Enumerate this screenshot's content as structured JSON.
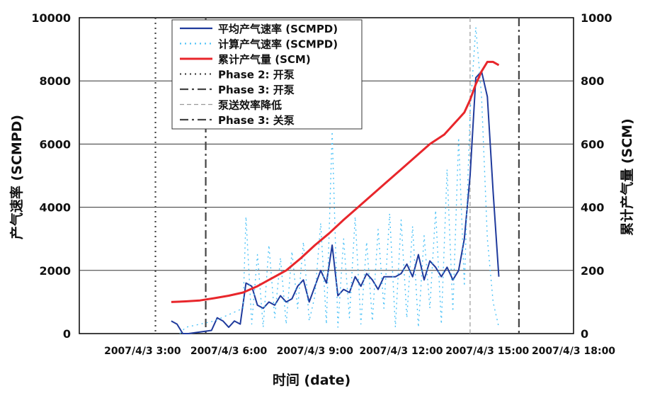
{
  "chart_data": {
    "type": "line",
    "title": "",
    "xlabel": "时间 (date)",
    "ylabel_left": "产气速率 (SCMPD)",
    "ylabel_right": "累计产气量 (SCM)",
    "x_ticks": [
      "2007/4/3 3:00",
      "2007/4/3 6:00",
      "2007/4/3 9:00",
      "2007/4/3 12:00",
      "2007/4/3 15:00",
      "2007/4/3 18:00"
    ],
    "x_tick_hours": [
      3,
      6,
      9,
      12,
      15,
      18
    ],
    "xlim_hours": [
      0.8,
      18.0
    ],
    "ylim_left": [
      0,
      10000
    ],
    "ylim_right": [
      0,
      1000
    ],
    "y_ticks_left": [
      "0",
      "2000",
      "4000",
      "6000",
      "8000",
      "10000"
    ],
    "y_ticks_right": [
      "0",
      "200",
      "400",
      "600",
      "800",
      "1000"
    ],
    "grid": "horizontal",
    "legend_position": "top-center",
    "series": [
      {
        "name": "平均产气速率 (SCMPD)",
        "axis": "left",
        "color": "#1f3a9c",
        "style": "solid",
        "x_hours": [
          4.0,
          4.2,
          4.4,
          4.6,
          5.4,
          5.6,
          5.8,
          6.0,
          6.2,
          6.4,
          6.6,
          6.8,
          7.0,
          7.2,
          7.4,
          7.6,
          7.8,
          8.0,
          8.2,
          8.4,
          8.6,
          8.8,
          9.0,
          9.2,
          9.4,
          9.6,
          9.8,
          10.0,
          10.2,
          10.4,
          10.6,
          10.8,
          11.0,
          11.2,
          11.4,
          11.6,
          11.8,
          12.0,
          12.2,
          12.4,
          12.6,
          12.8,
          13.0,
          13.2,
          13.4,
          13.6,
          13.8,
          14.0,
          14.2,
          14.4,
          14.6,
          14.8,
          15.0,
          15.2,
          15.4
        ],
        "values": [
          400,
          300,
          0,
          -100,
          100,
          500,
          400,
          200,
          400,
          300,
          1600,
          1500,
          900,
          800,
          1000,
          900,
          1200,
          1000,
          1100,
          1500,
          1700,
          1000,
          1500,
          2000,
          1600,
          2800,
          1200,
          1400,
          1300,
          1800,
          1500,
          1900,
          1700,
          1400,
          1800,
          1800,
          1800,
          1900,
          2200,
          1800,
          2500,
          1700,
          2300,
          2100,
          1800,
          2100,
          1700,
          2000,
          3000,
          5000,
          8100,
          8300,
          7500,
          4500,
          1800
        ]
      },
      {
        "name": "计算产气速率 (SCMPD)",
        "axis": "left",
        "color": "#4fc3f7",
        "style": "dotted",
        "x_hours": [
          4.3,
          4.5,
          5.5,
          6.5,
          6.6,
          6.8,
          7.0,
          7.2,
          7.4,
          7.6,
          7.8,
          8.0,
          8.2,
          8.4,
          8.6,
          8.8,
          9.0,
          9.2,
          9.4,
          9.6,
          9.8,
          10.0,
          10.2,
          10.4,
          10.6,
          10.8,
          11.0,
          11.2,
          11.4,
          11.6,
          11.8,
          12.0,
          12.2,
          12.4,
          12.6,
          12.8,
          13.0,
          13.2,
          13.4,
          13.6,
          13.8,
          14.0,
          14.2,
          14.4,
          14.6,
          14.8,
          15.0,
          15.2,
          15.4
        ],
        "values": [
          0,
          200,
          400,
          800,
          3700,
          300,
          2500,
          200,
          2800,
          500,
          2400,
          300,
          2600,
          800,
          2900,
          400,
          1200,
          3500,
          300,
          6400,
          200,
          3000,
          500,
          3700,
          300,
          2900,
          400,
          3300,
          800,
          3800,
          200,
          3600,
          500,
          3400,
          200,
          3100,
          800,
          3900,
          300,
          5200,
          700,
          6200,
          1500,
          7000,
          9700,
          7500,
          3000,
          1000,
          200
        ]
      },
      {
        "name": "累计产气量 (SCM)",
        "axis": "right",
        "color": "#e8262b",
        "style": "solid",
        "x_hours": [
          4.0,
          4.5,
          5.0,
          5.5,
          6.0,
          6.5,
          7.0,
          7.5,
          8.0,
          8.5,
          9.0,
          9.5,
          10.0,
          10.5,
          11.0,
          11.5,
          12.0,
          12.5,
          13.0,
          13.5,
          14.0,
          14.2,
          14.4,
          14.6,
          14.8,
          15.0,
          15.2,
          15.4
        ],
        "values": [
          100,
          102,
          105,
          112,
          120,
          130,
          150,
          175,
          200,
          238,
          280,
          318,
          360,
          400,
          440,
          480,
          520,
          560,
          600,
          630,
          680,
          700,
          740,
          790,
          830,
          860,
          860,
          850
        ]
      }
    ],
    "vertical_lines": [
      {
        "name": "Phase 2:  开泵",
        "x_hour": 3.45,
        "style": "dotted",
        "color": "#444444"
      },
      {
        "name": "Phase 3:  开泵",
        "x_hour": 5.2,
        "style": "dashdot",
        "color": "#444444"
      },
      {
        "name": "泵送效率降低",
        "x_hour": 14.4,
        "style": "dashed",
        "color": "#999999"
      },
      {
        "name": "Phase 3:  关泵",
        "x_hour": 16.1,
        "style": "dashdot",
        "color": "#444444"
      }
    ]
  }
}
